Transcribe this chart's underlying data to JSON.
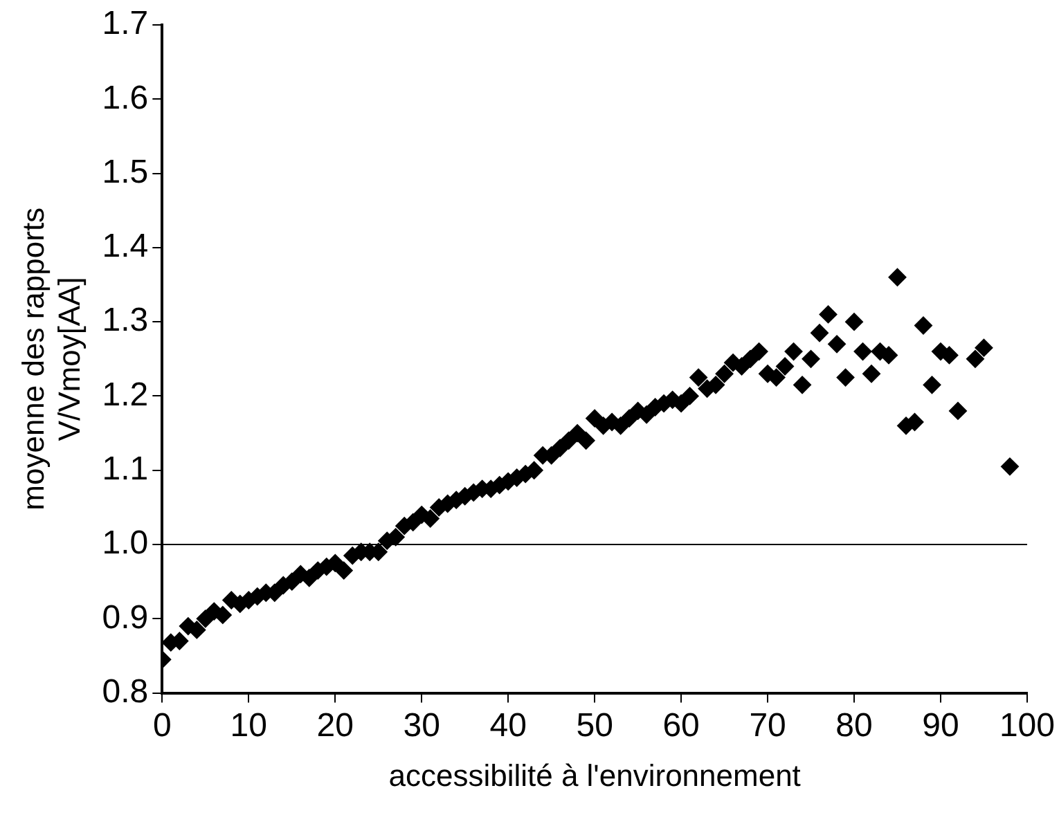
{
  "chart_data": {
    "type": "scatter",
    "xlabel": "accessibilité à l'environnement",
    "ylabel": "moyenne des rapports\nV/Vmoy[AA]",
    "x": [
      0,
      1,
      2,
      3,
      4,
      5,
      6,
      7,
      8,
      9,
      10,
      11,
      12,
      13,
      14,
      15,
      16,
      17,
      18,
      19,
      20,
      21,
      22,
      23,
      24,
      25,
      26,
      27,
      28,
      29,
      30,
      31,
      32,
      33,
      34,
      35,
      36,
      37,
      38,
      39,
      40,
      41,
      42,
      43,
      44,
      45,
      46,
      47,
      48,
      49,
      50,
      51,
      52,
      53,
      54,
      55,
      56,
      57,
      58,
      59,
      60,
      61,
      62,
      63,
      64,
      65,
      66,
      67,
      68,
      69,
      70,
      71,
      72,
      73,
      74,
      75,
      76,
      77,
      78,
      79,
      80,
      81,
      82,
      83,
      84,
      85,
      86,
      87,
      88,
      89,
      90,
      91,
      92,
      94,
      95,
      98
    ],
    "series": [
      {
        "color": "#000000",
        "values": [
          0.845,
          0.868,
          0.87,
          0.89,
          0.885,
          0.9,
          0.91,
          0.905,
          0.925,
          0.92,
          0.925,
          0.93,
          0.935,
          0.935,
          0.945,
          0.95,
          0.96,
          0.955,
          0.965,
          0.97,
          0.975,
          0.965,
          0.985,
          0.99,
          0.99,
          0.99,
          1.005,
          1.01,
          1.025,
          1.03,
          1.04,
          1.035,
          1.05,
          1.055,
          1.06,
          1.065,
          1.07,
          1.075,
          1.075,
          1.08,
          1.085,
          1.09,
          1.095,
          1.1,
          1.12,
          1.12,
          1.13,
          1.14,
          1.15,
          1.14,
          1.17,
          1.16,
          1.165,
          1.16,
          1.17,
          1.18,
          1.175,
          1.185,
          1.19,
          1.195,
          1.19,
          1.2,
          1.225,
          1.21,
          1.215,
          1.23,
          1.245,
          1.24,
          1.25,
          1.26,
          1.23,
          1.225,
          1.24,
          1.26,
          1.215,
          1.25,
          1.285,
          1.31,
          1.27,
          1.225,
          1.3,
          1.26,
          1.23,
          1.26,
          1.255,
          1.36,
          1.16,
          1.165,
          1.295,
          1.215,
          1.26,
          1.255,
          1.18,
          1.25,
          1.265,
          1.105
        ]
      }
    ],
    "xlim": [
      0,
      100
    ],
    "xticks": [
      0,
      10,
      20,
      30,
      40,
      50,
      60,
      70,
      80,
      90,
      100
    ],
    "ylim": [
      0.8,
      1.7
    ],
    "yticks": [
      0.8,
      0.9,
      {
        "value": 1,
        "label": "1.0"
      },
      1.1,
      1.2,
      1.3,
      1.4,
      1.5,
      1.6,
      1.7
    ],
    "ref_lines": [
      {
        "axis": "y",
        "value": 1,
        "color": "#000000"
      }
    ],
    "marker": "diamond",
    "grid": false,
    "legend": false
  }
}
